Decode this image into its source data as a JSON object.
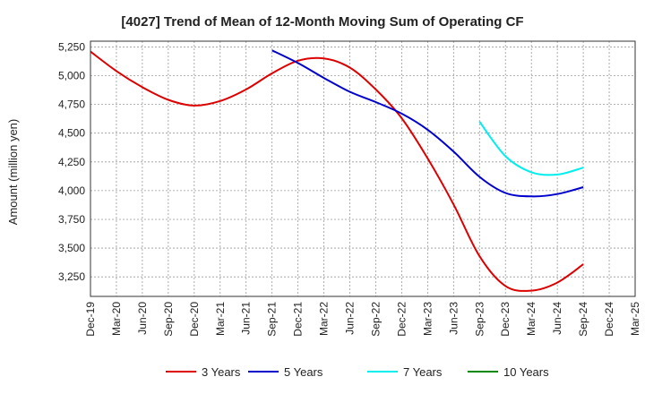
{
  "chart_data": {
    "type": "line",
    "title": "[4027]  Trend of Mean of 12-Month Moving Sum of Operating CF",
    "xlabel": "",
    "ylabel": "Amount (million yen)",
    "grid": true,
    "legend_position": "bottom",
    "ylim": [
      3080,
      5300
    ],
    "yticks": [
      3250,
      3500,
      3750,
      4000,
      4250,
      4500,
      4750,
      5000,
      5250
    ],
    "ytick_labels": [
      "3,250",
      "3,500",
      "3,750",
      "4,000",
      "4,250",
      "4,500",
      "4,750",
      "5,000",
      "5,250"
    ],
    "categories": [
      "Dec-19",
      "Mar-20",
      "Jun-20",
      "Sep-20",
      "Dec-20",
      "Mar-21",
      "Jun-21",
      "Sep-21",
      "Dec-21",
      "Mar-22",
      "Jun-22",
      "Sep-22",
      "Dec-22",
      "Mar-23",
      "Jun-23",
      "Sep-23",
      "Dec-23",
      "Mar-24",
      "Jun-24",
      "Sep-24",
      "Dec-24",
      "Mar-25"
    ],
    "series": [
      {
        "name": "3 Years",
        "color": "#dd0000",
        "values": [
          5210,
          5040,
          4900,
          4790,
          4740,
          4780,
          4880,
          5020,
          5130,
          5150,
          5070,
          4880,
          4630,
          4280,
          3880,
          3430,
          3170,
          3130,
          3200,
          3360,
          null,
          null
        ]
      },
      {
        "name": "5 Years",
        "color": "#0000cc",
        "values": [
          null,
          null,
          null,
          null,
          null,
          null,
          null,
          5220,
          5110,
          4980,
          4860,
          4770,
          4670,
          4530,
          4340,
          4120,
          3980,
          3950,
          3970,
          4030,
          null,
          null
        ]
      },
      {
        "name": "7 Years",
        "color": "#00eeee",
        "values": [
          null,
          null,
          null,
          null,
          null,
          null,
          null,
          null,
          null,
          null,
          null,
          null,
          null,
          null,
          null,
          4600,
          4300,
          4160,
          4140,
          4200,
          null,
          null
        ]
      },
      {
        "name": "10 Years",
        "color": "#008800",
        "values": [
          null,
          null,
          null,
          null,
          null,
          null,
          null,
          null,
          null,
          null,
          null,
          null,
          null,
          null,
          null,
          null,
          null,
          null,
          null,
          null,
          null,
          null
        ]
      }
    ]
  }
}
